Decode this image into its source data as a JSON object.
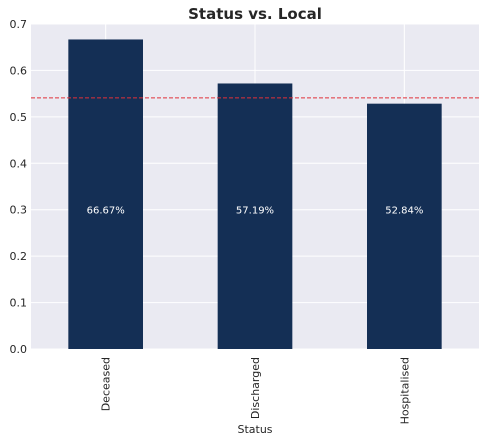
{
  "chart_data": {
    "type": "bar",
    "title": "Status vs. Local",
    "xlabel": "Status",
    "ylabel": "",
    "categories": [
      "Deceased",
      "Discharged",
      "Hospitalised"
    ],
    "values": [
      0.6667,
      0.5719,
      0.5284
    ],
    "data_labels": [
      "66.67%",
      "57.19%",
      "52.84%"
    ],
    "ylim": [
      0,
      0.7
    ],
    "yticks": [
      0.0,
      0.1,
      0.2,
      0.3,
      0.4,
      0.5,
      0.6,
      0.7
    ],
    "ytick_labels": [
      "0.0",
      "0.1",
      "0.2",
      "0.3",
      "0.4",
      "0.5",
      "0.6",
      "0.7"
    ],
    "reference_line": {
      "value": 0.541,
      "color": "#e0303a",
      "style": "dashed"
    },
    "grid": true,
    "legend": "none",
    "colors": {
      "bar": "#142f55",
      "plot_background": "#eaeaf2",
      "grid": "#ffffff",
      "label_text": "#ffffff"
    }
  }
}
